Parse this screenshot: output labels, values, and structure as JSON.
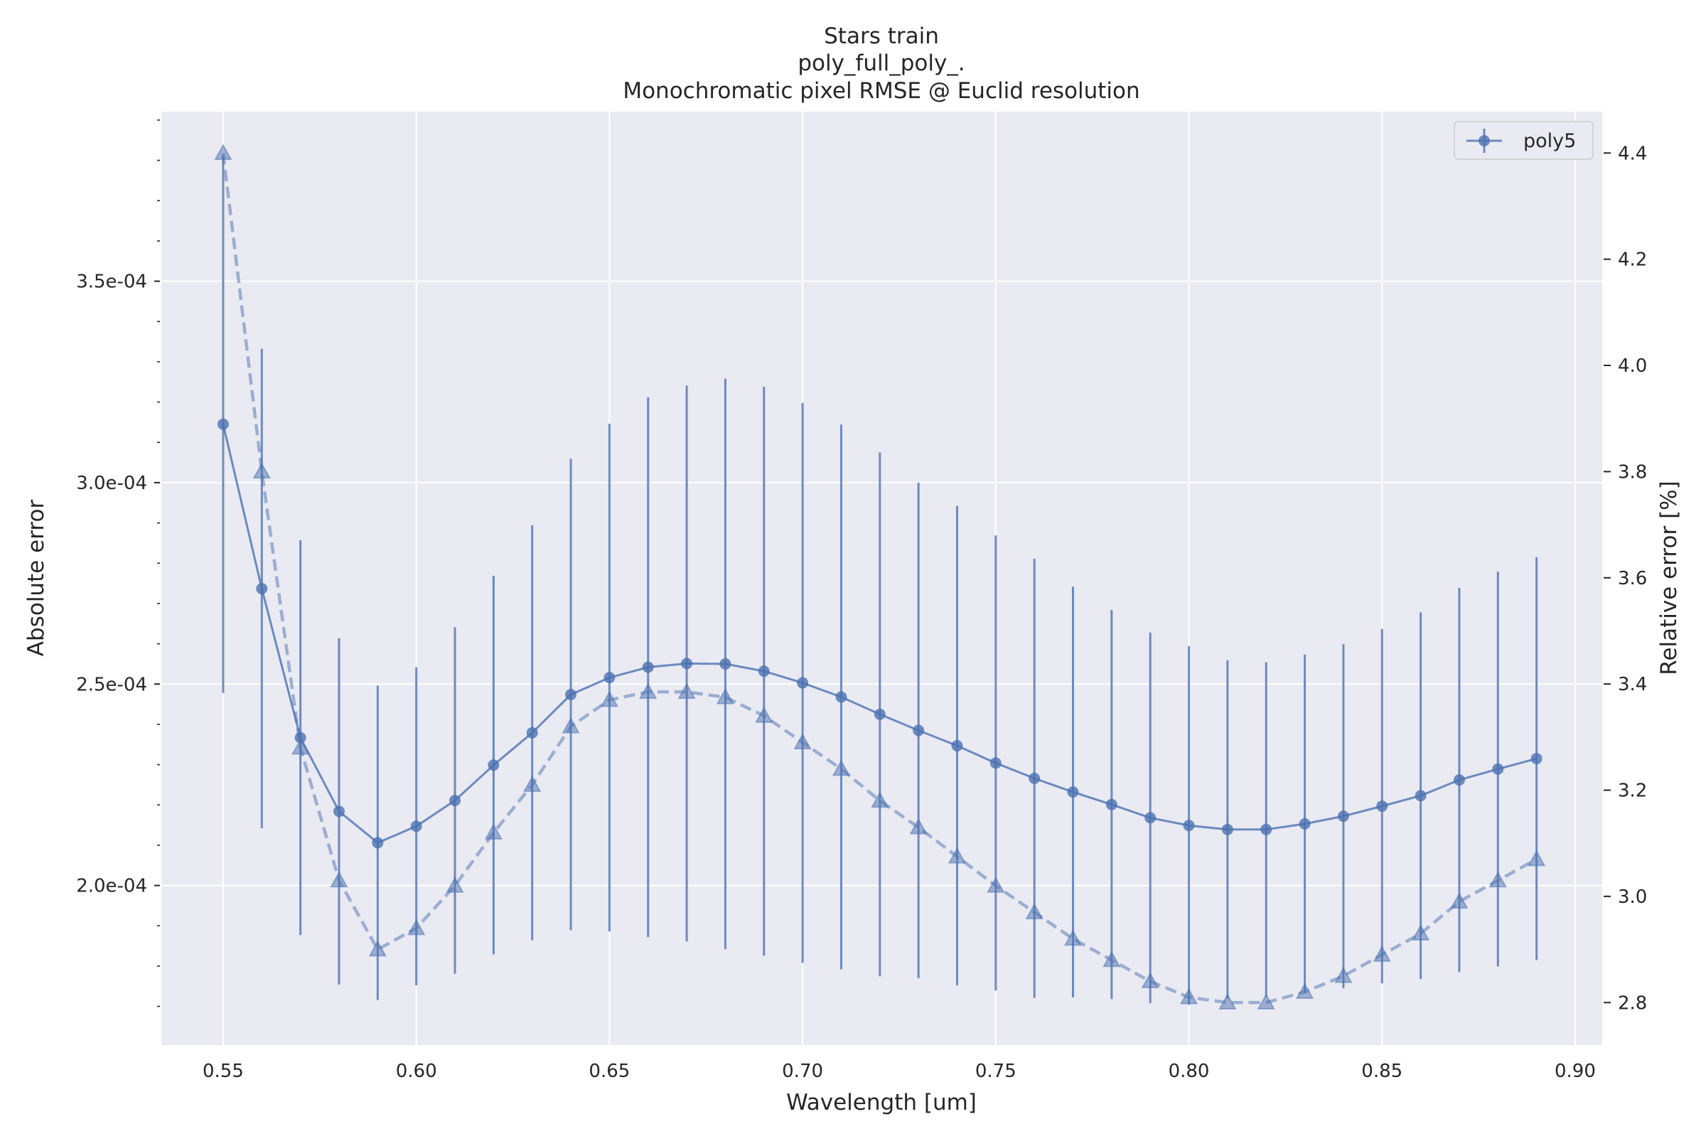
{
  "chart_data": {
    "type": "line",
    "title": [
      "Stars train",
      "poly_full_poly_.",
      "Monochromatic pixel RMSE @ Euclid resolution"
    ],
    "xlabel": "Wavelength [um]",
    "ylabel": "Absolute error",
    "ylabel_right": "Relative error [%]",
    "x": [
      0.55,
      0.56,
      0.57,
      0.58,
      0.59,
      0.6,
      0.61,
      0.62,
      0.63,
      0.64,
      0.65,
      0.66,
      0.67,
      0.68,
      0.69,
      0.7,
      0.71,
      0.72,
      0.73,
      0.74,
      0.75,
      0.76,
      0.77,
      0.78,
      0.79,
      0.8,
      0.81,
      0.82,
      0.83,
      0.84,
      0.85,
      0.86,
      0.87,
      0.88,
      0.89
    ],
    "xlim": [
      0.534,
      0.907
    ],
    "xticks": [
      0.55,
      0.6,
      0.65,
      0.7,
      0.75,
      0.8,
      0.85,
      0.9
    ],
    "xtick_labels": [
      "0.55",
      "0.60",
      "0.65",
      "0.70",
      "0.75",
      "0.80",
      "0.85",
      "0.90"
    ],
    "ylim": [
      0.0001604,
      0.0003921
    ],
    "yticks": [
      0.0002,
      0.00025,
      0.0003,
      0.00035
    ],
    "ytick_labels": [
      "2.0e-04",
      "2.5e-04",
      "3.0e-04",
      "3.5e-04"
    ],
    "y_minor_step": 1e-05,
    "y2lim": [
      2.72,
      4.478
    ],
    "y2ticks": [
      2.8,
      3.0,
      3.2,
      3.4,
      3.6,
      3.8,
      4.0,
      4.2,
      4.4
    ],
    "y2tick_labels": [
      "2.8",
      "3.0",
      "3.2",
      "3.4",
      "3.6",
      "3.8",
      "4.0",
      "4.2",
      "4.4"
    ],
    "grid": true,
    "legend_position": "top-right",
    "series": [
      {
        "name": "poly5",
        "axis": "left",
        "color": "#4c72b0",
        "marker": "circle",
        "line_style": "solid",
        "values": [
          0.0003145,
          0.0002737,
          0.0002367,
          0.0002184,
          0.0002106,
          0.0002147,
          0.0002211,
          0.0002299,
          0.0002379,
          0.0002474,
          0.0002516,
          0.0002542,
          0.0002551,
          0.000255,
          0.0002532,
          0.0002503,
          0.0002468,
          0.0002425,
          0.0002385,
          0.0002347,
          0.0002304,
          0.0002266,
          0.0002232,
          0.0002201,
          0.0002168,
          0.0002149,
          0.0002139,
          0.0002139,
          0.0002153,
          0.0002172,
          0.0002197,
          0.0002223,
          0.0002262,
          0.0002289,
          0.0002315
        ],
        "errors": [
          6.67e-05,
          5.95e-05,
          4.9e-05,
          4.3e-05,
          3.9e-05,
          3.95e-05,
          4.3e-05,
          4.7e-05,
          5.15e-05,
          5.85e-05,
          6.3e-05,
          6.7e-05,
          6.9e-05,
          7.08e-05,
          7.06e-05,
          6.95e-05,
          6.76e-05,
          6.5e-05,
          6.15e-05,
          5.95e-05,
          5.65e-05,
          5.45e-05,
          5.1e-05,
          4.83e-05,
          4.6e-05,
          4.45e-05,
          4.2e-05,
          4.15e-05,
          4.2e-05,
          4.27e-05,
          4.4e-05,
          4.55e-05,
          4.77e-05,
          4.9e-05,
          5e-05
        ]
      },
      {
        "name": "",
        "axis": "right",
        "color": "#4c72b0",
        "marker": "triangle",
        "line_style": "dashed",
        "values": [
          4.4,
          3.8,
          3.28,
          3.03,
          2.9,
          2.94,
          3.02,
          3.12,
          3.21,
          3.32,
          3.37,
          3.385,
          3.385,
          3.375,
          3.34,
          3.29,
          3.24,
          3.18,
          3.13,
          3.075,
          3.02,
          2.97,
          2.92,
          2.88,
          2.84,
          2.81,
          2.8,
          2.8,
          2.82,
          2.85,
          2.89,
          2.93,
          2.99,
          3.03,
          3.07
        ]
      }
    ],
    "legend": [
      "poly5"
    ]
  }
}
